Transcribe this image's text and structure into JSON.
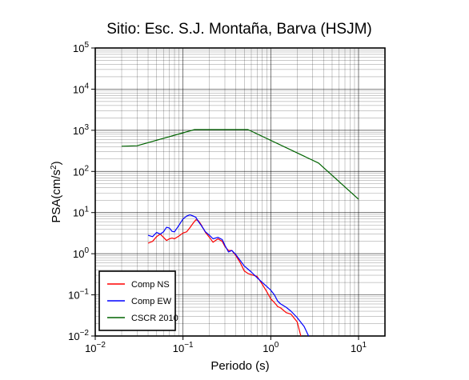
{
  "chart_data": {
    "type": "line",
    "title": "Sitio: Esc. S.J. Montaña, Barva (HSJM)",
    "xlabel": "Periodo (s)",
    "ylabel_main": "PSA(cm/s",
    "ylabel_sup": "2",
    "ylabel_end": ")",
    "xscale": "log",
    "yscale": "log",
    "xlim": [
      0.01,
      20
    ],
    "ylim": [
      0.01,
      100000
    ],
    "grid": true,
    "legend_position": "bottom-left",
    "x_ticks": [
      {
        "value": 0.01,
        "base": "10",
        "exp": "−2"
      },
      {
        "value": 0.1,
        "base": "10",
        "exp": "−1"
      },
      {
        "value": 1,
        "base": "10",
        "exp": "0"
      },
      {
        "value": 10,
        "base": "10",
        "exp": "1"
      }
    ],
    "y_ticks": [
      {
        "value": 0.01,
        "base": "10",
        "exp": "−2"
      },
      {
        "value": 0.1,
        "base": "10",
        "exp": "−1"
      },
      {
        "value": 1,
        "base": "10",
        "exp": "0"
      },
      {
        "value": 10,
        "base": "10",
        "exp": "1"
      },
      {
        "value": 100,
        "base": "10",
        "exp": "2"
      },
      {
        "value": 1000,
        "base": "10",
        "exp": "3"
      },
      {
        "value": 10000,
        "base": "10",
        "exp": "4"
      },
      {
        "value": 100000,
        "base": "10",
        "exp": "5"
      }
    ],
    "series": [
      {
        "name": "Comp NS",
        "color": "#ff0000",
        "x": [
          0.04,
          0.045,
          0.05,
          0.055,
          0.06,
          0.065,
          0.07,
          0.075,
          0.08,
          0.09,
          0.1,
          0.11,
          0.12,
          0.13,
          0.14,
          0.15,
          0.16,
          0.18,
          0.2,
          0.22,
          0.25,
          0.28,
          0.3,
          0.33,
          0.36,
          0.4,
          0.45,
          0.5,
          0.55,
          0.6,
          0.7,
          0.8,
          0.9,
          1.0,
          1.1,
          1.2,
          1.3,
          1.5,
          1.7,
          2.0,
          2.2
        ],
        "y": [
          1.8,
          2.0,
          2.6,
          3.0,
          2.5,
          2.1,
          2.3,
          2.4,
          2.3,
          2.7,
          3.2,
          3.4,
          4.3,
          5.5,
          6.7,
          6.3,
          5.2,
          3.3,
          2.5,
          1.9,
          2.3,
          2.0,
          1.5,
          1.2,
          1.2,
          0.9,
          0.6,
          0.38,
          0.33,
          0.31,
          0.28,
          0.18,
          0.12,
          0.08,
          0.065,
          0.052,
          0.048,
          0.037,
          0.034,
          0.022,
          0.01
        ]
      },
      {
        "name": "Comp EW",
        "color": "#0000ff",
        "x": [
          0.04,
          0.045,
          0.05,
          0.055,
          0.06,
          0.065,
          0.07,
          0.075,
          0.08,
          0.09,
          0.1,
          0.11,
          0.12,
          0.13,
          0.14,
          0.15,
          0.16,
          0.18,
          0.2,
          0.22,
          0.25,
          0.28,
          0.3,
          0.33,
          0.36,
          0.4,
          0.45,
          0.5,
          0.55,
          0.6,
          0.7,
          0.8,
          0.9,
          1.0,
          1.1,
          1.2,
          1.3,
          1.5,
          1.7,
          2.0,
          2.4,
          2.7
        ],
        "y": [
          2.8,
          2.6,
          3.3,
          3.0,
          3.4,
          4.4,
          4.2,
          3.5,
          3.4,
          4.9,
          7.0,
          8.2,
          8.8,
          8.3,
          7.7,
          6.0,
          5.0,
          3.4,
          2.8,
          2.3,
          2.5,
          2.2,
          1.6,
          1.1,
          1.2,
          0.95,
          0.68,
          0.5,
          0.42,
          0.36,
          0.26,
          0.2,
          0.16,
          0.13,
          0.1,
          0.07,
          0.06,
          0.05,
          0.04,
          0.028,
          0.017,
          0.01
        ]
      },
      {
        "name": "CSCR 2010",
        "color": "#006400",
        "x": [
          0.02,
          0.03,
          0.135,
          0.55,
          3.5,
          10.0
        ],
        "y": [
          410,
          420,
          1040,
          1040,
          160,
          21
        ]
      }
    ]
  }
}
